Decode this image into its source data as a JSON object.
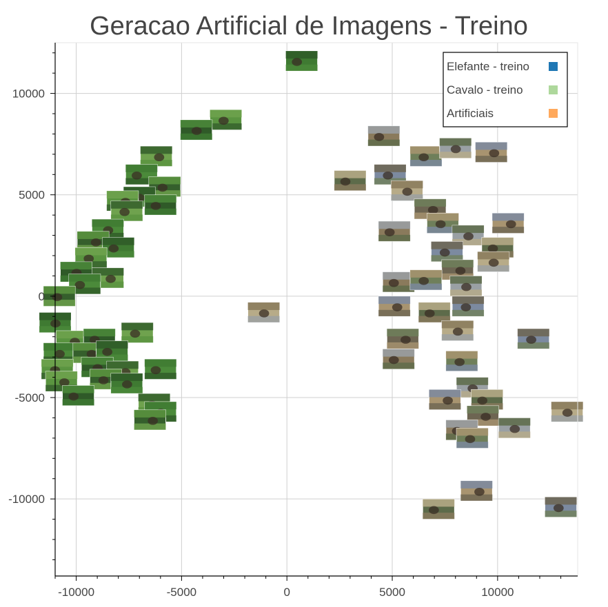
{
  "chart_data": {
    "type": "scatter",
    "title": "Geracao Artificial de Imagens - Treino",
    "xlabel": "",
    "ylabel": "",
    "xlim": [
      -11000,
      13800
    ],
    "ylim": [
      -13800,
      12500
    ],
    "x_ticks": [
      -10000,
      -5000,
      0,
      5000,
      10000
    ],
    "x_tick_labels": [
      "-10000",
      "-5000",
      "0",
      "5000",
      "10000"
    ],
    "y_ticks": [
      10000,
      5000,
      0,
      -5000,
      -10000
    ],
    "y_tick_labels": [
      "10000",
      "5000",
      "0",
      "-5000",
      "-10000"
    ],
    "grid": true,
    "legend_position": "top-right",
    "marker": "image-thumbnail",
    "series": [
      {
        "name": "Elefante - treino",
        "color": "#1f77b4",
        "thumb_colors": [
          "#8a7a5c",
          "#6f7f5a",
          "#9aa0a4",
          "#a89470",
          "#5d6b4a",
          "#7c8aa0",
          "#b7ab88",
          "#6d6552"
        ],
        "points": [
          [
            4600,
            7900
          ],
          [
            6600,
            6900
          ],
          [
            8000,
            7300
          ],
          [
            9700,
            7100
          ],
          [
            3000,
            5700
          ],
          [
            4900,
            6000
          ],
          [
            5700,
            5200
          ],
          [
            6800,
            4300
          ],
          [
            5100,
            3200
          ],
          [
            7400,
            3600
          ],
          [
            8600,
            3000
          ],
          [
            10500,
            3600
          ],
          [
            10000,
            2400
          ],
          [
            7600,
            2200
          ],
          [
            9800,
            1700
          ],
          [
            8100,
            1300
          ],
          [
            5300,
            700
          ],
          [
            6600,
            800
          ],
          [
            8500,
            500
          ],
          [
            5100,
            -500
          ],
          [
            7000,
            -800
          ],
          [
            8600,
            -500
          ],
          [
            8100,
            -1700
          ],
          [
            5500,
            -2100
          ],
          [
            5300,
            -3100
          ],
          [
            8300,
            -3200
          ],
          [
            8800,
            -4500
          ],
          [
            7500,
            -5100
          ],
          [
            9500,
            -5100
          ],
          [
            11700,
            -2100
          ],
          [
            13300,
            -5700
          ],
          [
            9300,
            -5900
          ],
          [
            8300,
            -6600
          ],
          [
            8800,
            -7000
          ],
          [
            10800,
            -6500
          ],
          [
            9000,
            -9600
          ],
          [
            7200,
            -10500
          ],
          [
            13000,
            -10400
          ],
          [
            -1100,
            -800
          ]
        ]
      },
      {
        "name": "Cavalo - treino",
        "color": "#aed89c",
        "thumb_colors": [
          "#3f7a32",
          "#5a9440",
          "#2f5a28",
          "#6fa24e",
          "#4b8a3a",
          "#355f2c"
        ],
        "points": [
          [
            700,
            11600
          ],
          [
            -2900,
            8700
          ],
          [
            -4300,
            8200
          ],
          [
            -6200,
            6900
          ],
          [
            -6900,
            6000
          ],
          [
            -5800,
            5400
          ],
          [
            -7000,
            4900
          ],
          [
            -7800,
            4700
          ],
          [
            -6000,
            4500
          ],
          [
            -7600,
            4200
          ],
          [
            -8500,
            3300
          ],
          [
            -9200,
            2700
          ],
          [
            -8000,
            2400
          ],
          [
            -9300,
            1900
          ],
          [
            -10000,
            1200
          ],
          [
            -8500,
            900
          ],
          [
            -9600,
            600
          ],
          [
            -10800,
            0
          ],
          [
            -11000,
            -1300
          ],
          [
            -10200,
            -2200
          ],
          [
            -8900,
            -2100
          ],
          [
            -7100,
            -1800
          ],
          [
            -10800,
            -2800
          ],
          [
            -9400,
            -2800
          ],
          [
            -8300,
            -2700
          ],
          [
            -10900,
            -3600
          ],
          [
            -9000,
            -3500
          ],
          [
            -7800,
            -3700
          ],
          [
            -6000,
            -3600
          ],
          [
            -8600,
            -4100
          ],
          [
            -7600,
            -4300
          ],
          [
            -10700,
            -4200
          ],
          [
            -9900,
            -4900
          ],
          [
            -6300,
            -5300
          ],
          [
            -6000,
            -5700
          ],
          [
            -6500,
            -6100
          ]
        ]
      },
      {
        "name": "Artificiais",
        "color": "#ffa95c",
        "thumb_colors": [],
        "points": []
      }
    ]
  }
}
